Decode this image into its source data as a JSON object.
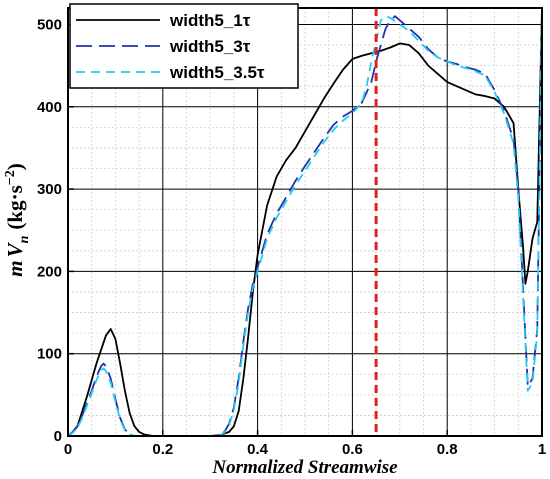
{
  "chart_data": {
    "type": "line",
    "xlabel": "Normalized Streamwise",
    "ylabel": {
      "m": "m",
      "V": "V",
      "sub": "n",
      "unit_open": "(kg·s",
      "unit_exp": "−2",
      "unit_close": ")"
    },
    "xlim": [
      0,
      1
    ],
    "ylim": [
      0,
      520
    ],
    "xticks": [
      0,
      0.2,
      0.4,
      0.6,
      0.8,
      1
    ],
    "xtick_labels": [
      "0",
      "0.2",
      "0.4",
      "0.6",
      "0.8",
      "1"
    ],
    "yticks": [
      0,
      100,
      200,
      300,
      400,
      500
    ],
    "ytick_labels": [
      "0",
      "100",
      "200",
      "300",
      "400",
      "500"
    ],
    "x_minor_step": 0.05,
    "y_minor_step": 25,
    "grid": true,
    "legend_position": "top-left",
    "reference_line": {
      "x": 0.65,
      "color": "#dd2222",
      "style": "dashed"
    },
    "series": [
      {
        "name": "width5_1τ",
        "color": "#000000",
        "dash": "solid",
        "points": [
          [
            0,
            0
          ],
          [
            0.01,
            5
          ],
          [
            0.02,
            12
          ],
          [
            0.03,
            30
          ],
          [
            0.04,
            48
          ],
          [
            0.05,
            68
          ],
          [
            0.06,
            88
          ],
          [
            0.07,
            105
          ],
          [
            0.08,
            122
          ],
          [
            0.09,
            130
          ],
          [
            0.1,
            118
          ],
          [
            0.11,
            88
          ],
          [
            0.12,
            55
          ],
          [
            0.13,
            28
          ],
          [
            0.14,
            12
          ],
          [
            0.15,
            5
          ],
          [
            0.16,
            2
          ],
          [
            0.18,
            0
          ],
          [
            0.3,
            0
          ],
          [
            0.32,
            1
          ],
          [
            0.34,
            5
          ],
          [
            0.35,
            12
          ],
          [
            0.36,
            30
          ],
          [
            0.37,
            70
          ],
          [
            0.38,
            120
          ],
          [
            0.39,
            175
          ],
          [
            0.4,
            220
          ],
          [
            0.42,
            280
          ],
          [
            0.44,
            315
          ],
          [
            0.46,
            335
          ],
          [
            0.48,
            350
          ],
          [
            0.5,
            370
          ],
          [
            0.52,
            390
          ],
          [
            0.54,
            410
          ],
          [
            0.56,
            428
          ],
          [
            0.58,
            445
          ],
          [
            0.6,
            458
          ],
          [
            0.62,
            462
          ],
          [
            0.64,
            465
          ],
          [
            0.66,
            468
          ],
          [
            0.68,
            472
          ],
          [
            0.7,
            477
          ],
          [
            0.72,
            475
          ],
          [
            0.74,
            465
          ],
          [
            0.76,
            450
          ],
          [
            0.78,
            440
          ],
          [
            0.8,
            430
          ],
          [
            0.82,
            425
          ],
          [
            0.84,
            420
          ],
          [
            0.86,
            415
          ],
          [
            0.88,
            413
          ],
          [
            0.9,
            410
          ],
          [
            0.92,
            400
          ],
          [
            0.94,
            380
          ],
          [
            0.95,
            300
          ],
          [
            0.96,
            230
          ],
          [
            0.965,
            185
          ],
          [
            0.97,
            200
          ],
          [
            0.98,
            240
          ],
          [
            0.99,
            260
          ],
          [
            1,
            520
          ]
        ]
      },
      {
        "name": "width5_3τ",
        "color": "#2233aa",
        "dash": "long-dash",
        "points": [
          [
            0,
            0
          ],
          [
            0.01,
            5
          ],
          [
            0.02,
            12
          ],
          [
            0.03,
            25
          ],
          [
            0.04,
            40
          ],
          [
            0.05,
            55
          ],
          [
            0.06,
            72
          ],
          [
            0.07,
            85
          ],
          [
            0.075,
            88
          ],
          [
            0.08,
            85
          ],
          [
            0.09,
            70
          ],
          [
            0.1,
            45
          ],
          [
            0.11,
            22
          ],
          [
            0.12,
            8
          ],
          [
            0.13,
            2
          ],
          [
            0.14,
            0
          ],
          [
            0.3,
            0
          ],
          [
            0.32,
            1
          ],
          [
            0.33,
            5
          ],
          [
            0.34,
            15
          ],
          [
            0.35,
            35
          ],
          [
            0.36,
            70
          ],
          [
            0.37,
            115
          ],
          [
            0.38,
            155
          ],
          [
            0.39,
            185
          ],
          [
            0.4,
            205
          ],
          [
            0.42,
            245
          ],
          [
            0.44,
            270
          ],
          [
            0.46,
            290
          ],
          [
            0.48,
            310
          ],
          [
            0.5,
            328
          ],
          [
            0.52,
            345
          ],
          [
            0.54,
            362
          ],
          [
            0.56,
            378
          ],
          [
            0.58,
            388
          ],
          [
            0.6,
            395
          ],
          [
            0.62,
            405
          ],
          [
            0.64,
            430
          ],
          [
            0.65,
            455
          ],
          [
            0.66,
            475
          ],
          [
            0.67,
            495
          ],
          [
            0.68,
            505
          ],
          [
            0.69,
            510
          ],
          [
            0.7,
            505
          ],
          [
            0.72,
            495
          ],
          [
            0.74,
            485
          ],
          [
            0.76,
            470
          ],
          [
            0.78,
            460
          ],
          [
            0.8,
            455
          ],
          [
            0.82,
            452
          ],
          [
            0.84,
            448
          ],
          [
            0.86,
            445
          ],
          [
            0.88,
            440
          ],
          [
            0.9,
            420
          ],
          [
            0.92,
            395
          ],
          [
            0.94,
            360
          ],
          [
            0.95,
            300
          ],
          [
            0.96,
            180
          ],
          [
            0.97,
            60
          ],
          [
            0.98,
            70
          ],
          [
            0.99,
            130
          ],
          [
            1,
            520
          ]
        ]
      },
      {
        "name": "width5_3.5τ",
        "color": "#22ccee",
        "dash": "dash",
        "points": [
          [
            0,
            0
          ],
          [
            0.01,
            4
          ],
          [
            0.02,
            10
          ],
          [
            0.03,
            22
          ],
          [
            0.04,
            37
          ],
          [
            0.05,
            52
          ],
          [
            0.06,
            68
          ],
          [
            0.07,
            80
          ],
          [
            0.075,
            82
          ],
          [
            0.08,
            79
          ],
          [
            0.09,
            65
          ],
          [
            0.1,
            42
          ],
          [
            0.11,
            20
          ],
          [
            0.12,
            7
          ],
          [
            0.13,
            2
          ],
          [
            0.14,
            0
          ],
          [
            0.3,
            0
          ],
          [
            0.32,
            1
          ],
          [
            0.33,
            4
          ],
          [
            0.34,
            13
          ],
          [
            0.35,
            32
          ],
          [
            0.36,
            65
          ],
          [
            0.37,
            110
          ],
          [
            0.38,
            150
          ],
          [
            0.39,
            180
          ],
          [
            0.4,
            200
          ],
          [
            0.42,
            240
          ],
          [
            0.44,
            265
          ],
          [
            0.46,
            285
          ],
          [
            0.48,
            305
          ],
          [
            0.5,
            322
          ],
          [
            0.52,
            340
          ],
          [
            0.54,
            357
          ],
          [
            0.56,
            372
          ],
          [
            0.58,
            383
          ],
          [
            0.6,
            392
          ],
          [
            0.62,
            405
          ],
          [
            0.63,
            425
          ],
          [
            0.64,
            455
          ],
          [
            0.65,
            480
          ],
          [
            0.66,
            505
          ],
          [
            0.67,
            510
          ],
          [
            0.68,
            508
          ],
          [
            0.7,
            500
          ],
          [
            0.72,
            492
          ],
          [
            0.74,
            480
          ],
          [
            0.76,
            468
          ],
          [
            0.78,
            460
          ],
          [
            0.8,
            455
          ],
          [
            0.82,
            450
          ],
          [
            0.84,
            447
          ],
          [
            0.86,
            443
          ],
          [
            0.88,
            438
          ],
          [
            0.9,
            418
          ],
          [
            0.92,
            392
          ],
          [
            0.94,
            355
          ],
          [
            0.95,
            290
          ],
          [
            0.96,
            170
          ],
          [
            0.97,
            55
          ],
          [
            0.98,
            65
          ],
          [
            0.99,
            125
          ],
          [
            1,
            520
          ]
        ]
      }
    ]
  }
}
